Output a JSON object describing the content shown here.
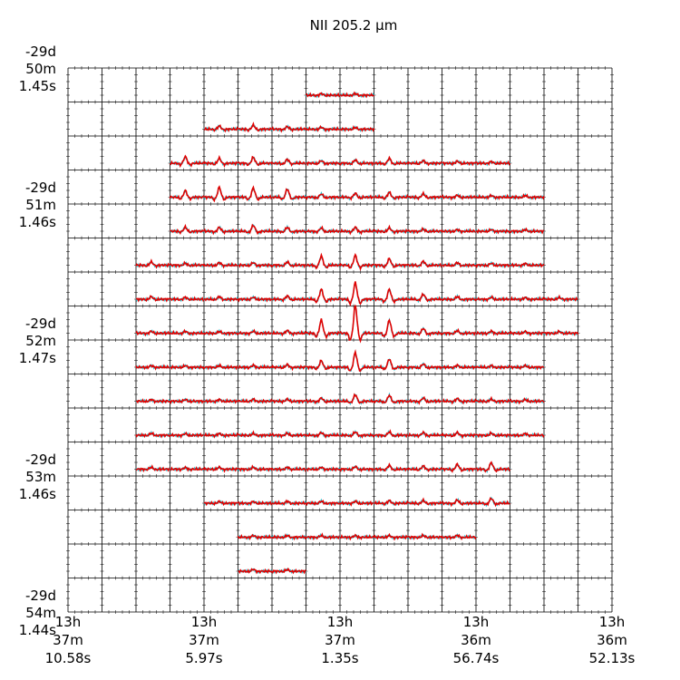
{
  "chart_data": {
    "type": "spectral-grid",
    "title": "NII 205.2 μm",
    "x_labels": [
      [
        "13h",
        "37m",
        "10.58s"
      ],
      [
        "13h",
        "37m",
        "5.97s"
      ],
      [
        "13h",
        "37m",
        "1.35s"
      ],
      [
        "13h",
        "36m",
        "56.74s"
      ],
      [
        "13h",
        "36m",
        "52.13s"
      ]
    ],
    "y_labels": [
      [
        "-29d",
        "50m",
        "1.45s"
      ],
      [
        "-29d",
        "51m",
        "1.46s"
      ],
      [
        "-29d",
        "52m",
        "1.47s"
      ],
      [
        "-29d",
        "53m",
        "1.46s"
      ],
      [
        "-29d",
        "54m",
        "1.44s"
      ]
    ],
    "colors": {
      "observed": "#e00000",
      "model": "#20c0d0"
    },
    "peaks": [
      [
        null,
        null,
        null,
        null,
        null,
        null,
        null,
        0.05,
        0.05,
        null,
        null,
        null,
        null,
        null,
        null,
        null
      ],
      [
        null,
        null,
        null,
        null,
        0.1,
        0.12,
        0.08,
        0.06,
        0.05,
        null,
        null,
        null,
        null,
        null,
        null,
        null
      ],
      [
        null,
        null,
        null,
        0.2,
        0.15,
        0.18,
        0.12,
        0.08,
        0.1,
        0.15,
        0.08,
        0.06,
        0.05,
        null,
        null,
        null
      ],
      [
        null,
        null,
        null,
        0.2,
        0.3,
        0.28,
        0.25,
        0.1,
        0.12,
        0.15,
        0.1,
        0.06,
        0.05,
        0.05,
        null,
        null
      ],
      [
        null,
        null,
        null,
        0.12,
        0.12,
        0.18,
        0.12,
        0.1,
        0.12,
        0.1,
        0.06,
        0.05,
        0.05,
        0.05,
        null,
        null
      ],
      [
        null,
        null,
        0.1,
        0.06,
        0.08,
        0.08,
        0.1,
        0.28,
        0.3,
        0.2,
        0.12,
        0.08,
        0.06,
        0.05,
        null,
        null
      ],
      [
        null,
        null,
        0.08,
        0.06,
        0.08,
        0.06,
        0.1,
        0.3,
        0.5,
        0.3,
        0.15,
        0.08,
        0.06,
        0.05,
        0.05,
        null
      ],
      [
        null,
        null,
        0.06,
        0.06,
        0.05,
        0.06,
        0.08,
        0.4,
        0.85,
        0.4,
        0.15,
        0.08,
        0.06,
        0.05,
        0.05,
        null
      ],
      [
        null,
        null,
        0.05,
        0.05,
        0.05,
        0.06,
        0.08,
        0.2,
        0.45,
        0.25,
        0.1,
        0.06,
        0.05,
        0.05,
        null,
        null
      ],
      [
        null,
        null,
        0.05,
        0.05,
        0.05,
        0.06,
        0.06,
        0.1,
        0.2,
        0.18,
        0.1,
        0.08,
        0.06,
        0.05,
        null,
        null
      ],
      [
        null,
        null,
        0.06,
        0.05,
        0.05,
        0.05,
        0.06,
        0.08,
        0.1,
        0.1,
        0.08,
        0.08,
        0.06,
        0.05,
        null,
        null
      ],
      [
        null,
        null,
        0.06,
        0.05,
        0.06,
        0.06,
        0.06,
        0.06,
        0.08,
        0.12,
        0.1,
        0.15,
        0.2,
        null,
        null,
        null
      ],
      [
        null,
        null,
        null,
        null,
        0.05,
        0.05,
        0.06,
        0.06,
        0.06,
        0.08,
        0.08,
        0.1,
        0.15,
        null,
        null,
        null
      ],
      [
        null,
        null,
        null,
        null,
        null,
        0.05,
        0.05,
        0.05,
        0.05,
        0.05,
        0.05,
        0.06,
        null,
        null,
        null,
        null
      ],
      [
        null,
        null,
        null,
        null,
        null,
        0.06,
        0.05,
        null,
        null,
        null,
        null,
        null,
        null,
        null,
        null,
        null
      ],
      [
        null,
        null,
        null,
        null,
        null,
        null,
        null,
        null,
        null,
        null,
        null,
        null,
        null,
        null,
        null,
        null
      ]
    ]
  }
}
